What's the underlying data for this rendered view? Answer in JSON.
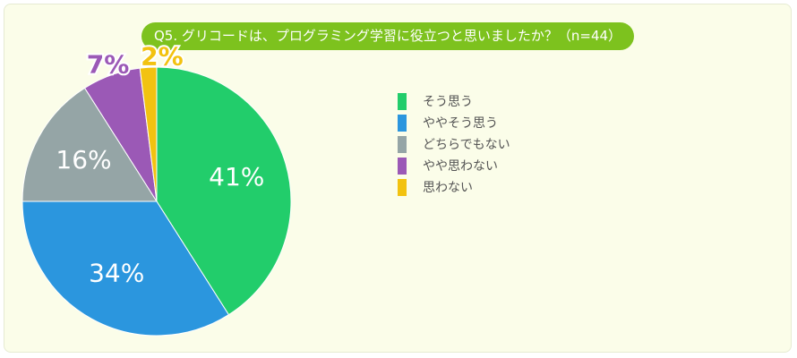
{
  "chart_data": {
    "type": "pie",
    "title": "Q5. グリコードは、プログラミング学習に役立つと思いましたか？（n=44）",
    "slices": [
      {
        "label": "そう思う",
        "value": 41,
        "display": "41%",
        "color": "#22cd6b"
      },
      {
        "label": "ややそう思う",
        "value": 34,
        "display": "34%",
        "color": "#2b96de"
      },
      {
        "label": "どちらでもない",
        "value": 16,
        "display": "16%",
        "color": "#95a5a6"
      },
      {
        "label": "やや思わない",
        "value": 7,
        "display": "7%",
        "color": "#9b59b6"
      },
      {
        "label": "思わない",
        "value": 2,
        "display": "2%",
        "color": "#f2c210"
      }
    ],
    "legend_placement": "right",
    "grid": false
  }
}
